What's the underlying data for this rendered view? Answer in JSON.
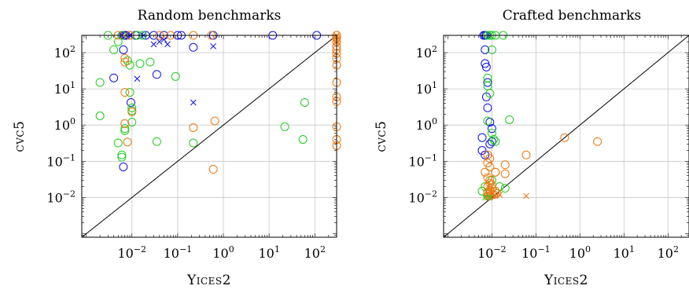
{
  "colors": {
    "blue": "#1010e0",
    "green": "#22cc22",
    "orange": "#ee7711",
    "grid": "#c8c8c8",
    "axis": "#000000"
  },
  "chart_data": [
    {
      "type": "scatter",
      "title": "Random benchmarks",
      "xlabel": "Yices2",
      "ylabel": "cvc5",
      "xscale": "log",
      "yscale": "log",
      "xlim": [
        0.0008,
        300
      ],
      "ylim": [
        0.0008,
        300
      ],
      "x_ticks": [
        {
          "base": "10",
          "exp": "−2"
        },
        {
          "base": "10",
          "exp": "−1"
        },
        {
          "base": "10",
          "exp": "0"
        },
        {
          "base": "10",
          "exp": "1"
        },
        {
          "base": "10",
          "exp": "2"
        }
      ],
      "y_ticks": [
        {
          "base": "10",
          "exp": "2"
        },
        {
          "base": "10",
          "exp": "1"
        },
        {
          "base": "10",
          "exp": "0"
        },
        {
          "base": "10",
          "exp": "−1"
        },
        {
          "base": "10",
          "exp": "−2"
        }
      ],
      "grid": true,
      "diagonal": "y=x",
      "series": [
        {
          "color": "blue",
          "marker": "circle",
          "points": [
            [
              0.0065,
              300
            ],
            [
              0.007,
              300
            ],
            [
              0.0075,
              300
            ],
            [
              0.009,
              300
            ],
            [
              0.012,
              300
            ],
            [
              0.02,
              300
            ],
            [
              0.03,
              300
            ],
            [
              0.05,
              300
            ],
            [
              0.1,
              300
            ],
            [
              0.12,
              300
            ],
            [
              0.6,
              300
            ],
            [
              12,
              300
            ],
            [
              110,
              300
            ],
            [
              0.004,
              20
            ],
            [
              0.0065,
              120
            ],
            [
              0.0095,
              4.2
            ],
            [
              0.035,
              25
            ],
            [
              0.22,
              140
            ],
            [
              0.0065,
              0.07
            ]
          ]
        },
        {
          "color": "blue",
          "marker": "cross",
          "points": [
            [
              0.006,
              300
            ],
            [
              0.009,
              300
            ],
            [
              0.018,
              300
            ],
            [
              0.03,
              170
            ],
            [
              0.04,
              200
            ],
            [
              0.05,
              230
            ],
            [
              0.06,
              170
            ],
            [
              0.22,
              4.2
            ],
            [
              0.6,
              150
            ],
            [
              0.013,
              19
            ]
          ]
        },
        {
          "color": "green",
          "marker": "circle",
          "points": [
            [
              0.002,
              15
            ],
            [
              0.002,
              1.8
            ],
            [
              0.003,
              300
            ],
            [
              0.004,
              120
            ],
            [
              0.005,
              200
            ],
            [
              0.005,
              0.32
            ],
            [
              0.006,
              300
            ],
            [
              0.006,
              0.15
            ],
            [
              0.006,
              0.13
            ],
            [
              0.007,
              0.8
            ],
            [
              0.007,
              0.7
            ],
            [
              0.008,
              60
            ],
            [
              0.009,
              300
            ],
            [
              0.009,
              45
            ],
            [
              0.009,
              8
            ],
            [
              0.01,
              3
            ],
            [
              0.01,
              2.5
            ],
            [
              0.01,
              1.2
            ],
            [
              0.013,
              300
            ],
            [
              0.015,
              50
            ],
            [
              0.017,
              300
            ],
            [
              0.025,
              55
            ],
            [
              0.035,
              0.35
            ],
            [
              0.09,
              22
            ],
            [
              0.22,
              0.32
            ],
            [
              22,
              0.9
            ],
            [
              55,
              0.4
            ],
            [
              60,
              4.2
            ],
            [
              300,
              300
            ]
          ]
        },
        {
          "color": "orange",
          "marker": "circle",
          "points": [
            [
              0.005,
              300
            ],
            [
              0.007,
              70
            ],
            [
              0.007,
              55
            ],
            [
              0.007,
              8
            ],
            [
              0.007,
              1.1
            ],
            [
              0.008,
              0.34
            ],
            [
              0.009,
              300
            ],
            [
              0.01,
              2.3
            ],
            [
              0.04,
              300
            ],
            [
              0.07,
              300
            ],
            [
              0.22,
              300
            ],
            [
              0.22,
              0.85
            ],
            [
              0.55,
              300
            ],
            [
              0.65,
              1.3
            ],
            [
              0.6,
              0.06
            ],
            [
              300,
              300
            ],
            [
              300,
              250
            ],
            [
              300,
              200
            ],
            [
              300,
              150
            ],
            [
              300,
              120
            ],
            [
              300,
              95
            ],
            [
              300,
              70
            ],
            [
              300,
              45
            ],
            [
              300,
              15
            ],
            [
              300,
              6
            ],
            [
              300,
              4.5
            ],
            [
              300,
              0.9
            ],
            [
              300,
              0.4
            ],
            [
              300,
              0.27
            ]
          ]
        },
        {
          "color": "orange",
          "marker": "cross",
          "points": [
            [
              300,
              300
            ],
            [
              300,
              270
            ],
            [
              300,
              230
            ],
            [
              300,
              190
            ]
          ]
        }
      ]
    },
    {
      "type": "scatter",
      "title": "Crafted benchmarks",
      "xlabel": "Yices2",
      "ylabel": "cvc5",
      "xscale": "log",
      "yscale": "log",
      "xlim": [
        0.0008,
        300
      ],
      "ylim": [
        0.0008,
        300
      ],
      "x_ticks": [
        {
          "base": "10",
          "exp": "−2"
        },
        {
          "base": "10",
          "exp": "−1"
        },
        {
          "base": "10",
          "exp": "0"
        },
        {
          "base": "10",
          "exp": "1"
        },
        {
          "base": "10",
          "exp": "2"
        }
      ],
      "y_ticks": [
        {
          "base": "10",
          "exp": "2"
        },
        {
          "base": "10",
          "exp": "1"
        },
        {
          "base": "10",
          "exp": "0"
        },
        {
          "base": "10",
          "exp": "−1"
        },
        {
          "base": "10",
          "exp": "−2"
        }
      ],
      "grid": true,
      "diagonal": "y=x",
      "series": [
        {
          "color": "blue",
          "marker": "circle",
          "points": [
            [
              0.0065,
              300
            ],
            [
              0.007,
              300
            ],
            [
              0.0075,
              300
            ],
            [
              0.007,
              120
            ],
            [
              0.007,
              50
            ],
            [
              0.0075,
              40
            ],
            [
              0.0075,
              6
            ],
            [
              0.008,
              15
            ],
            [
              0.008,
              3
            ],
            [
              0.009,
              1.2
            ],
            [
              0.01,
              0.8
            ],
            [
              0.01,
              0.35
            ],
            [
              0.009,
              0.3
            ],
            [
              0.006,
              0.45
            ],
            [
              0.006,
              0.2
            ],
            [
              0.007,
              0.15
            ]
          ]
        },
        {
          "color": "green",
          "marker": "circle",
          "points": [
            [
              0.008,
              300
            ],
            [
              0.009,
              300
            ],
            [
              0.01,
              300
            ],
            [
              0.012,
              300
            ],
            [
              0.018,
              300
            ],
            [
              0.01,
              120
            ],
            [
              0.008,
              20
            ],
            [
              0.008,
              12
            ],
            [
              0.009,
              7.5
            ],
            [
              0.008,
              1.3
            ],
            [
              0.01,
              0.6
            ],
            [
              0.011,
              0.4
            ],
            [
              0.012,
              0.35
            ],
            [
              0.025,
              1.4
            ],
            [
              0.012,
              0.05
            ],
            [
              0.01,
              0.03
            ],
            [
              0.006,
              0.015
            ],
            [
              0.008,
              0.013
            ],
            [
              0.015,
              0.02
            ],
            [
              0.02,
              0.018
            ],
            [
              0.009,
              0.015
            ],
            [
              0.007,
              0.02
            ]
          ]
        },
        {
          "color": "orange",
          "marker": "circle",
          "points": [
            [
              0.008,
              0.15
            ],
            [
              0.009,
              0.12
            ],
            [
              0.008,
              0.09
            ],
            [
              0.009,
              0.07
            ],
            [
              0.007,
              0.05
            ],
            [
              0.008,
              0.035
            ],
            [
              0.009,
              0.03
            ],
            [
              0.009,
              0.025
            ],
            [
              0.01,
              0.022
            ],
            [
              0.008,
              0.02
            ],
            [
              0.01,
              0.018
            ],
            [
              0.009,
              0.016
            ],
            [
              0.012,
              0.015
            ],
            [
              0.008,
              0.014
            ],
            [
              0.009,
              0.013
            ],
            [
              0.01,
              0.012
            ],
            [
              0.011,
              0.012
            ],
            [
              0.013,
              0.013
            ],
            [
              0.008,
              0.011
            ],
            [
              0.009,
              0.011
            ],
            [
              0.012,
              0.05
            ],
            [
              0.02,
              0.08
            ],
            [
              0.02,
              0.045
            ],
            [
              0.06,
              0.15
            ],
            [
              0.45,
              0.45
            ],
            [
              2.5,
              0.35
            ]
          ]
        },
        {
          "color": "orange",
          "marker": "cross",
          "points": [
            [
              0.008,
              0.01
            ],
            [
              0.009,
              0.01
            ],
            [
              0.012,
              0.011
            ],
            [
              0.015,
              0.012
            ],
            [
              0.06,
              0.011
            ]
          ]
        },
        {
          "color": "green",
          "marker": "cross",
          "points": [
            [
              0.007,
              0.01
            ],
            [
              0.009,
              0.01
            ]
          ]
        }
      ]
    }
  ]
}
